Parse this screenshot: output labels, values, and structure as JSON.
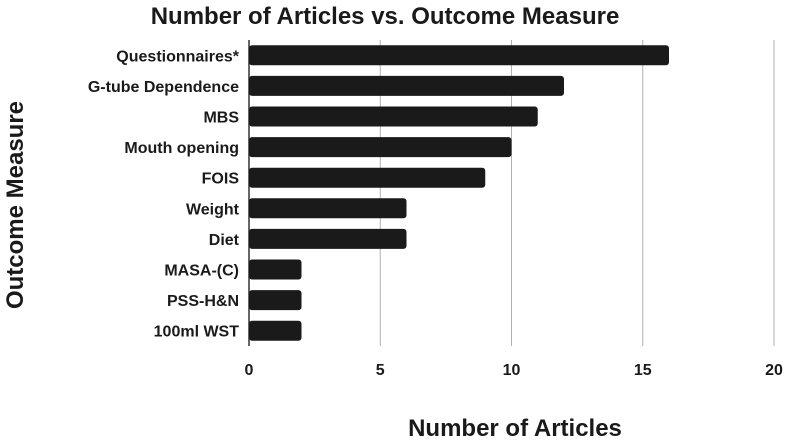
{
  "chart_data": {
    "type": "bar",
    "orientation": "horizontal",
    "title": "Number of Articles vs. Outcome Measure",
    "xlabel": "Number of Articles",
    "ylabel": "Outcome Measure",
    "categories": [
      "Questionnaires*",
      "G-tube Dependence",
      "MBS",
      "Mouth opening",
      "FOIS",
      "Weight",
      "Diet",
      "MASA-(C)",
      "PSS-H&N",
      "100ml WST"
    ],
    "values": [
      16,
      12,
      11,
      10,
      9,
      6,
      6,
      2,
      2,
      2
    ],
    "xlim": [
      0,
      20
    ],
    "xticks": [
      0,
      5,
      10,
      15,
      20
    ],
    "grid": true,
    "bar_color": "#1a1a1a",
    "grid_color": "#b0b0b0"
  }
}
